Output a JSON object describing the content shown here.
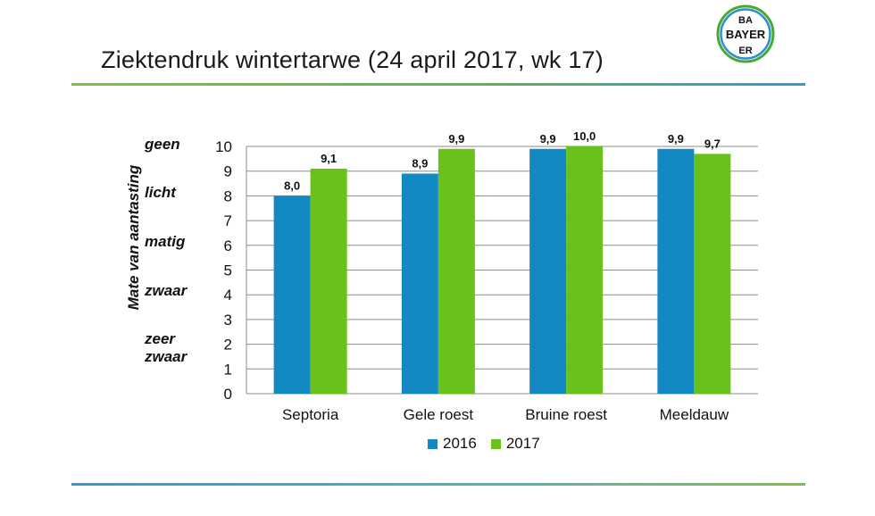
{
  "slide": {
    "title": "Ziektendruk  wintertarwe  (24 april 2017, wk 17)"
  },
  "logo": {
    "text_horizontal": "BAYER",
    "text_vertical_top": "BA",
    "text_vertical_bottom": "ER"
  },
  "severity_labels": [
    "geen",
    "licht",
    "matig",
    "zwaar",
    "zeer",
    "zwaar"
  ],
  "colors": {
    "series_2016": "#1389c4",
    "series_2017": "#6ac11b",
    "grid": "#8c8c8c"
  },
  "chart_data": {
    "type": "bar",
    "categories": [
      "Septoria",
      "Gele roest",
      "Bruine roest",
      "Meeldauw"
    ],
    "series": [
      {
        "name": "2016",
        "values": [
          8.0,
          8.9,
          9.9,
          9.9
        ],
        "labels": [
          "8,0",
          "8,9",
          "9,9",
          "9,9"
        ]
      },
      {
        "name": "2017",
        "values": [
          9.1,
          9.9,
          10.0,
          9.7
        ],
        "labels": [
          "9,1",
          "9,9",
          "10,0",
          "9,7"
        ]
      }
    ],
    "ylabel": "Mate van aantasting",
    "ylim": [
      0,
      10
    ],
    "yticks": [
      0,
      1,
      2,
      3,
      4,
      5,
      6,
      7,
      8,
      9,
      10
    ],
    "grid": true,
    "legend": "bottom"
  }
}
